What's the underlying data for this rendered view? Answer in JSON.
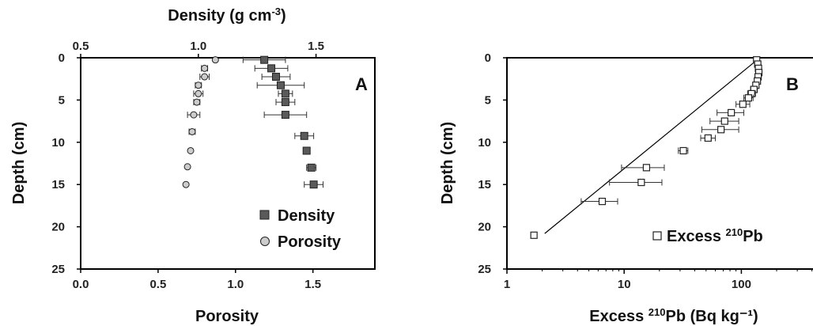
{
  "chart_data": [
    {
      "type": "scatter",
      "panel_label": "A",
      "top_axis": {
        "label": "Density (g cm",
        "label_sup": "-3",
        "label_end": ")",
        "ticks": [
          "0.5",
          "1.0",
          "1.5"
        ],
        "tick_values": [
          0.5,
          1.0,
          1.5
        ],
        "range": [
          0.5,
          1.75
        ]
      },
      "x_axis": {
        "label": "Porosity",
        "ticks": [
          "0.0",
          "0.5",
          "1.0",
          "1.5"
        ],
        "tick_values": [
          0.0,
          0.5,
          1.0,
          1.5
        ],
        "range": [
          0.0,
          1.9
        ]
      },
      "y_axis": {
        "label": "Depth (cm)",
        "ticks": [
          "0",
          "5",
          "10",
          "15",
          "20",
          "25"
        ],
        "tick_values": [
          0,
          5,
          10,
          15,
          20,
          25
        ],
        "range": [
          0,
          25
        ],
        "inverted": true
      },
      "legend": {
        "position": "bottom-right",
        "items": [
          "Density",
          "Porosity"
        ]
      },
      "series": [
        {
          "name": "Density",
          "marker": "square",
          "color": "#5a5a5a",
          "points": [
            {
              "x": 1.28,
              "y": 0.25,
              "xerr": 0.09
            },
            {
              "x": 1.31,
              "y": 1.25,
              "xerr": 0.07
            },
            {
              "x": 1.33,
              "y": 2.25,
              "xerr": 0.06
            },
            {
              "x": 1.35,
              "y": 3.25,
              "xerr": 0.1
            },
            {
              "x": 1.37,
              "y": 4.25,
              "xerr": 0.03
            },
            {
              "x": 1.37,
              "y": 5.25,
              "xerr": 0.04
            },
            {
              "x": 1.37,
              "y": 6.75,
              "xerr": 0.09
            },
            {
              "x": 1.45,
              "y": 9.25,
              "xerr": 0.04
            },
            {
              "x": 1.46,
              "y": 11.0,
              "xerr": 0.01
            },
            {
              "x": 1.48,
              "y": 13.0,
              "xerr": 0.02
            },
            {
              "x": 1.49,
              "y": 15.0,
              "xerr": 0.04
            }
          ]
        },
        {
          "name": "Porosity",
          "marker": "circle",
          "color": "#cccccc",
          "points": [
            {
              "x": 0.87,
              "y": 0.25,
              "xerr": 0.0
            },
            {
              "x": 0.8,
              "y": 1.25,
              "xerr": 0.02
            },
            {
              "x": 0.8,
              "y": 2.25,
              "xerr": 0.03
            },
            {
              "x": 0.76,
              "y": 3.25,
              "xerr": 0.02
            },
            {
              "x": 0.76,
              "y": 4.25,
              "xerr": 0.03
            },
            {
              "x": 0.75,
              "y": 5.25,
              "xerr": 0.02
            },
            {
              "x": 0.73,
              "y": 6.75,
              "xerr": 0.04
            },
            {
              "x": 0.72,
              "y": 8.75,
              "xerr": 0.02
            },
            {
              "x": 0.71,
              "y": 11.0,
              "xerr": 0.0
            },
            {
              "x": 0.69,
              "y": 12.9,
              "xerr": 0.0
            },
            {
              "x": 0.68,
              "y": 15.0,
              "xerr": 0.0
            }
          ]
        }
      ]
    },
    {
      "type": "scatter",
      "panel_label": "B",
      "x_axis": {
        "label": "Excess ",
        "label_sup": "210",
        "label_end": "Pb (Bq kg⁻¹)",
        "scale": "log",
        "ticks": [
          "1",
          "10",
          "100"
        ],
        "tick_values": [
          1,
          10,
          100
        ],
        "range": [
          1,
          500
        ]
      },
      "y_axis": {
        "label": "Depth (cm)",
        "ticks": [
          "0",
          "5",
          "10",
          "15",
          "20",
          "25"
        ],
        "tick_values": [
          0,
          5,
          10,
          15,
          20,
          25
        ],
        "range": [
          0,
          25
        ],
        "inverted": true
      },
      "legend": {
        "position": "bottom-right",
        "items": [
          "Excess 210Pb"
        ],
        "item_text": "Excess ",
        "item_sup": "210",
        "item_end": "Pb"
      },
      "series": [
        {
          "name": "Excess 210Pb",
          "marker": "square-open",
          "color": "#ffffff",
          "points": [
            {
              "x": 135,
              "y": 0.25,
              "xlo": 130,
              "xhi": 140
            },
            {
              "x": 138,
              "y": 0.75,
              "xlo": 132,
              "xhi": 144
            },
            {
              "x": 140,
              "y": 1.25,
              "xlo": 134,
              "xhi": 146
            },
            {
              "x": 141,
              "y": 1.75,
              "xlo": 135,
              "xhi": 148
            },
            {
              "x": 139,
              "y": 2.25,
              "xlo": 133,
              "xhi": 146
            },
            {
              "x": 137,
              "y": 2.75,
              "xlo": 130,
              "xhi": 144
            },
            {
              "x": 133,
              "y": 3.25,
              "xlo": 126,
              "xhi": 140
            },
            {
              "x": 128,
              "y": 3.75,
              "xlo": 120,
              "xhi": 137
            },
            {
              "x": 122,
              "y": 4.25,
              "xlo": 113,
              "xhi": 132
            },
            {
              "x": 115,
              "y": 4.75,
              "xlo": 105,
              "xhi": 126
            },
            {
              "x": 103,
              "y": 5.5,
              "xlo": 90,
              "xhi": 118
            },
            {
              "x": 82,
              "y": 6.5,
              "xlo": 62,
              "xhi": 105
            },
            {
              "x": 72,
              "y": 7.5,
              "xlo": 54,
              "xhi": 95
            },
            {
              "x": 67,
              "y": 8.5,
              "xlo": 46,
              "xhi": 95
            },
            {
              "x": 52,
              "y": 9.5,
              "xlo": 45,
              "xhi": 60
            },
            {
              "x": 32,
              "y": 11.0,
              "xlo": 29,
              "xhi": 35
            },
            {
              "x": 15.5,
              "y": 13.0,
              "xlo": 9.5,
              "xhi": 22
            },
            {
              "x": 14,
              "y": 14.75,
              "xlo": 7.5,
              "xhi": 21
            },
            {
              "x": 6.5,
              "y": 17.0,
              "xlo": 4.3,
              "xhi": 8.8
            },
            {
              "x": 1.7,
              "y": 21.0,
              "xlo": 1.7,
              "xhi": 1.7
            }
          ],
          "fit_line": [
            {
              "x": 2.1,
              "y": 20.8
            },
            {
              "x": 135,
              "y": 0.3
            }
          ]
        }
      ]
    }
  ]
}
